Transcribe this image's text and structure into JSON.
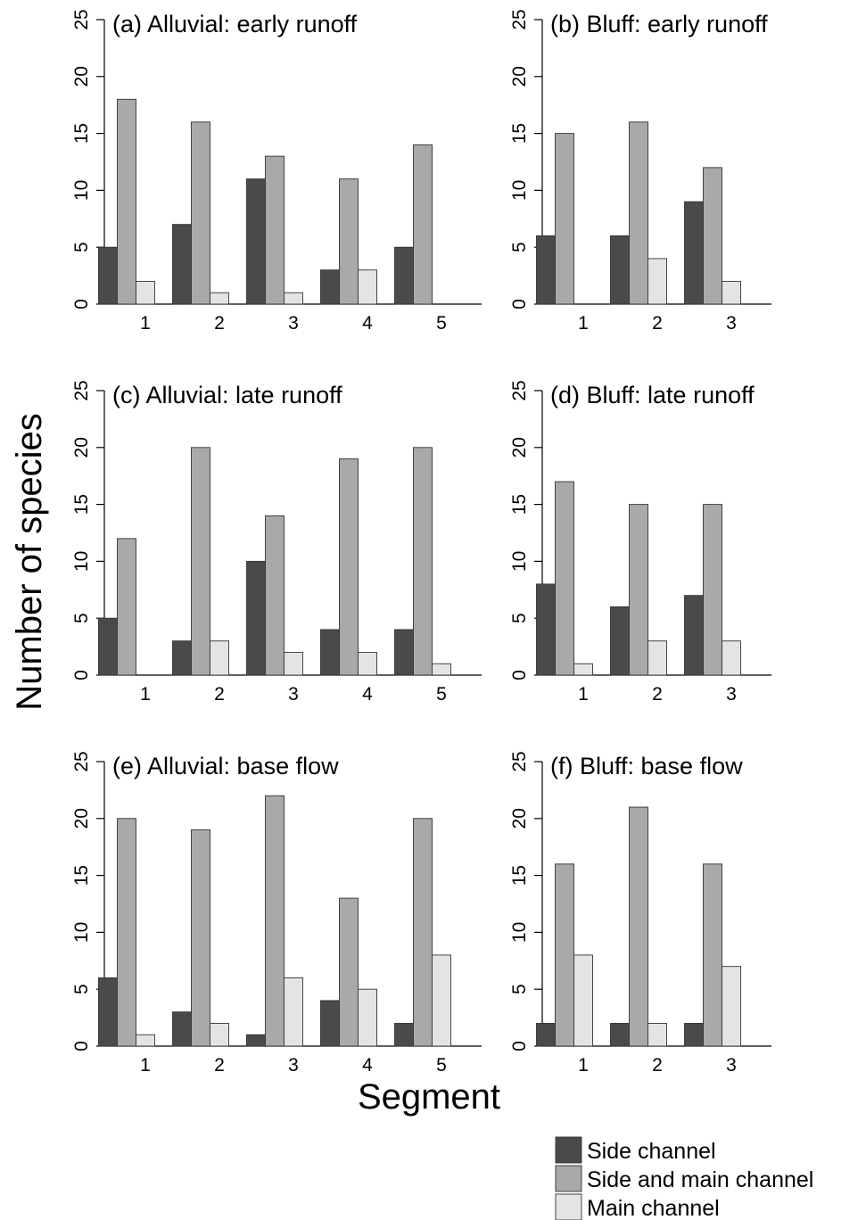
{
  "chart_data": {
    "type": "bar",
    "ylabel": "Number of species",
    "xlabel": "Segment",
    "ylim": [
      0,
      25
    ],
    "yticks": [
      0,
      5,
      10,
      15,
      20,
      25
    ],
    "series_names": [
      "Side channel",
      "Side and main channel",
      "Main channel"
    ],
    "colors": [
      "#4a4a4a",
      "#a9a9a9",
      "#e4e4e4"
    ],
    "legend_position": "bottom-right",
    "grid": false,
    "panels": [
      {
        "title": "(a) Alluvial: early runoff",
        "categories": [
          "1",
          "2",
          "3",
          "4",
          "5"
        ],
        "series": [
          {
            "name": "Side channel",
            "values": [
              5,
              7,
              11,
              3,
              5
            ]
          },
          {
            "name": "Side and main channel",
            "values": [
              18,
              16,
              13,
              11,
              14
            ]
          },
          {
            "name": "Main channel",
            "values": [
              2,
              1,
              1,
              3,
              0
            ]
          }
        ]
      },
      {
        "title": "(b) Bluff: early runoff",
        "categories": [
          "1",
          "2",
          "3"
        ],
        "series": [
          {
            "name": "Side channel",
            "values": [
              6,
              6,
              9
            ]
          },
          {
            "name": "Side and main channel",
            "values": [
              15,
              16,
              12
            ]
          },
          {
            "name": "Main channel",
            "values": [
              0,
              4,
              2
            ]
          }
        ]
      },
      {
        "title": "(c) Alluvial: late runoff",
        "categories": [
          "1",
          "2",
          "3",
          "4",
          "5"
        ],
        "series": [
          {
            "name": "Side channel",
            "values": [
              5,
              3,
              10,
              4,
              4
            ]
          },
          {
            "name": "Side and main channel",
            "values": [
              12,
              20,
              14,
              19,
              20
            ]
          },
          {
            "name": "Main channel",
            "values": [
              0,
              3,
              2,
              2,
              1
            ]
          }
        ]
      },
      {
        "title": "(d) Bluff: late runoff",
        "categories": [
          "1",
          "2",
          "3"
        ],
        "series": [
          {
            "name": "Side channel",
            "values": [
              8,
              6,
              7
            ]
          },
          {
            "name": "Side and main channel",
            "values": [
              17,
              15,
              15
            ]
          },
          {
            "name": "Main channel",
            "values": [
              1,
              3,
              3
            ]
          }
        ]
      },
      {
        "title": "(e) Alluvial: base flow",
        "categories": [
          "1",
          "2",
          "3",
          "4",
          "5"
        ],
        "series": [
          {
            "name": "Side channel",
            "values": [
              6,
              3,
              1,
              4,
              2
            ]
          },
          {
            "name": "Side and main channel",
            "values": [
              20,
              19,
              22,
              13,
              20
            ]
          },
          {
            "name": "Main channel",
            "values": [
              1,
              2,
              6,
              5,
              8
            ]
          }
        ]
      },
      {
        "title": "(f) Bluff: base flow",
        "categories": [
          "1",
          "2",
          "3"
        ],
        "series": [
          {
            "name": "Side channel",
            "values": [
              2,
              2,
              2
            ]
          },
          {
            "name": "Side and main channel",
            "values": [
              16,
              21,
              16
            ]
          },
          {
            "name": "Main channel",
            "values": [
              8,
              2,
              7
            ]
          }
        ]
      }
    ]
  }
}
